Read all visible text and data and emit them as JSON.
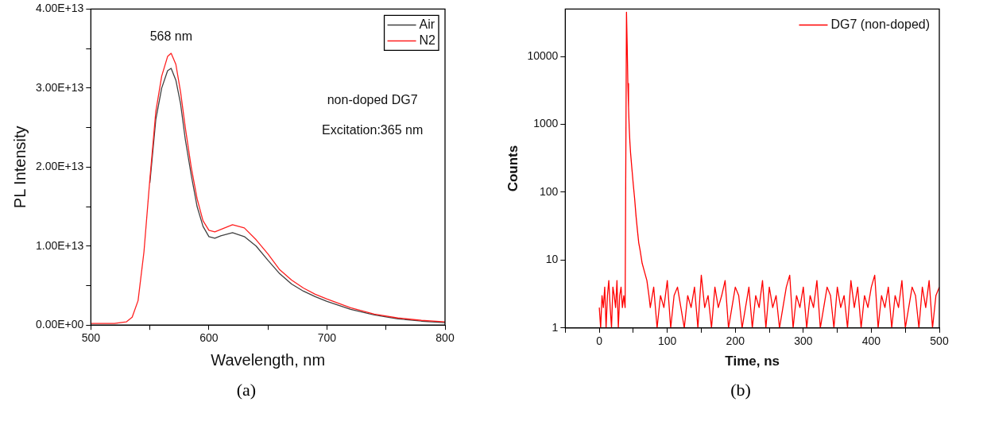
{
  "chart_data": [
    {
      "type": "line",
      "xlabel": "Wavelength, nm",
      "ylabel": "PL Intensity",
      "x": [
        500,
        520,
        530,
        535,
        540,
        545,
        550,
        555,
        560,
        565,
        568,
        572,
        576,
        580,
        585,
        590,
        595,
        600,
        605,
        610,
        620,
        630,
        640,
        650,
        660,
        670,
        680,
        690,
        700,
        720,
        740,
        760,
        780,
        800
      ],
      "series": [
        {
          "name": "Air",
          "color": "#404040",
          "values": [
            null,
            null,
            null,
            null,
            null,
            null,
            18000000000000.0,
            26000000000000.0,
            30000000000000.0,
            32200000000000.0,
            32500000000000.0,
            31000000000000.0,
            28000000000000.0,
            23500000000000.0,
            19000000000000.0,
            15000000000000.0,
            12500000000000.0,
            11200000000000.0,
            11000000000000.0,
            11300000000000.0,
            11700000000000.0,
            11200000000000.0,
            10000000000000.0,
            8200000000000.0,
            6500000000000.0,
            5200000000000.0,
            4300000000000.0,
            3600000000000.0,
            3000000000000.0,
            2000000000000.0,
            1300000000000.0,
            800000000000.0,
            500000000000.0,
            300000000000.0
          ]
        },
        {
          "name": "N2",
          "color": "#ff2020",
          "values": [
            200000000000.0,
            200000000000.0,
            400000000000.0,
            1000000000000.0,
            3100000000000.0,
            9300000000000.0,
            18500000000000.0,
            27000000000000.0,
            31500000000000.0,
            34000000000000.0,
            34400000000000.0,
            33000000000000.0,
            29500000000000.0,
            25000000000000.0,
            20000000000000.0,
            16000000000000.0,
            13200000000000.0,
            12000000000000.0,
            11800000000000.0,
            12100000000000.0,
            12700000000000.0,
            12300000000000.0,
            10800000000000.0,
            9000000000000.0,
            7000000000000.0,
            5700000000000.0,
            4700000000000.0,
            3900000000000.0,
            3300000000000.0,
            2200000000000.0,
            1400000000000.0,
            900000000000.0,
            600000000000.0,
            400000000000.0
          ]
        }
      ],
      "xlim": [
        500,
        800
      ],
      "xticks": [
        500,
        {
          "value": 550,
          "label": null
        },
        600,
        {
          "value": 650,
          "label": null
        },
        700,
        {
          "value": 750,
          "label": null
        },
        800
      ],
      "ylim": [
        0,
        40000000000000.0
      ],
      "yticks": [
        {
          "value": 0,
          "label": "0.00E+00"
        },
        {
          "value": 5000000000000.0,
          "label": null
        },
        {
          "value": 10000000000000.0,
          "label": "1.00E+13"
        },
        {
          "value": 15000000000000.0,
          "label": null
        },
        {
          "value": 20000000000000.0,
          "label": "2.00E+13"
        },
        {
          "value": 25000000000000.0,
          "label": null
        },
        {
          "value": 30000000000000.0,
          "label": "3.00E+13"
        },
        {
          "value": 35000000000000.0,
          "label": null
        },
        {
          "value": 40000000000000.0,
          "label": "4.00E+13"
        }
      ],
      "grid": false,
      "legend": "top right",
      "line_style": "solid",
      "marker": "none",
      "annotations": [
        {
          "text": "568 nm",
          "x": 568,
          "y": 34400000000000.0
        },
        "non-doped DG7",
        "Excitation:365 nm",
        "(a)"
      ]
    },
    {
      "type": "line",
      "xlabel": "Time, ns",
      "ylabel": "Counts",
      "log": "y",
      "series": [
        {
          "name": "DG7 (non-doped)",
          "color": "#ff0000",
          "x": [
            0,
            2,
            4,
            6,
            8,
            10,
            12,
            14,
            16,
            18,
            20,
            22,
            24,
            26,
            28,
            30,
            32,
            34,
            36,
            38,
            40,
            41,
            42,
            43,
            44,
            45,
            46,
            48,
            50,
            52,
            54,
            56,
            58,
            60,
            63,
            66,
            70,
            73,
            75,
            80,
            85,
            90,
            95,
            100,
            105,
            110,
            115,
            120,
            125,
            130,
            135,
            140,
            145,
            150,
            155,
            160,
            165,
            170,
            175,
            180,
            185,
            190,
            195,
            200,
            205,
            210,
            215,
            220,
            225,
            230,
            235,
            240,
            245,
            250,
            255,
            260,
            265,
            270,
            275,
            280,
            285,
            290,
            295,
            300,
            305,
            310,
            315,
            320,
            325,
            330,
            335,
            340,
            345,
            350,
            355,
            360,
            365,
            370,
            375,
            380,
            385,
            390,
            395,
            400,
            405,
            410,
            415,
            420,
            425,
            430,
            435,
            440,
            445,
            450,
            455,
            460,
            465,
            470,
            475,
            480,
            485,
            490,
            495,
            500
          ],
          "values": [
            2,
            1,
            3,
            2,
            4,
            1,
            3,
            5,
            2,
            1,
            4,
            3,
            2,
            5,
            1,
            3,
            4,
            2,
            3,
            2,
            45000,
            15000,
            4000,
            1800,
            900,
            550,
            380,
            220,
            130,
            80,
            45,
            28,
            18,
            14,
            9,
            7,
            5,
            3,
            2,
            4,
            1,
            3,
            2,
            5,
            1,
            3,
            4,
            2,
            1,
            3,
            2,
            4,
            1,
            6,
            2,
            3,
            1,
            4,
            2,
            3,
            5,
            1,
            2,
            4,
            3,
            1,
            2,
            4,
            1,
            3,
            2,
            5,
            1,
            4,
            2,
            3,
            1,
            2,
            4,
            6,
            1,
            3,
            2,
            4,
            1,
            3,
            2,
            5,
            1,
            2,
            4,
            3,
            1,
            4,
            2,
            3,
            1,
            5,
            2,
            4,
            1,
            3,
            2,
            4,
            6,
            1,
            3,
            2,
            4,
            1,
            3,
            2,
            5,
            1,
            2,
            4,
            3,
            1,
            4,
            2,
            5,
            1,
            3,
            4
          ]
        }
      ],
      "xlim": [
        -50,
        500
      ],
      "xticks": [
        {
          "value": -50,
          "label": null
        },
        0,
        {
          "value": 50,
          "label": null
        },
        100,
        {
          "value": 150,
          "label": null
        },
        200,
        {
          "value": 250,
          "label": null
        },
        300,
        {
          "value": 350,
          "label": null
        },
        400,
        {
          "value": 450,
          "label": null
        },
        500
      ],
      "ylim": [
        1,
        50000
      ],
      "yticks": [
        1,
        10,
        100,
        1000,
        10000
      ],
      "grid": false,
      "legend": "top right",
      "line_style": "solid",
      "marker": "none",
      "annotations": [
        "(b)"
      ]
    }
  ]
}
